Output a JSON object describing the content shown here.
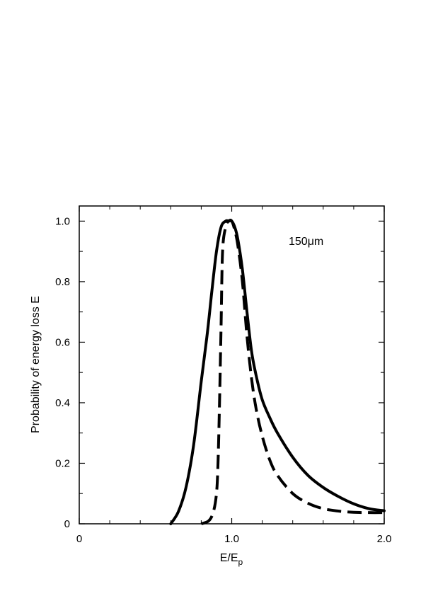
{
  "chart_data": {
    "type": "line",
    "title": "",
    "xlabel": "E/E",
    "xlabel_subscript": "p",
    "ylabel": "Probability of energy loss E",
    "xlim": [
      0,
      2.0
    ],
    "ylim": [
      0,
      1.05
    ],
    "x_tick_labels": [
      {
        "value": 0,
        "label": "0"
      },
      {
        "value": 1.0,
        "label": "1.0"
      },
      {
        "value": 2.0,
        "label": "2.0"
      }
    ],
    "y_tick_labels": [
      {
        "value": 0,
        "label": "0"
      },
      {
        "value": 0.2,
        "label": "0.2"
      },
      {
        "value": 0.4,
        "label": "0.4"
      },
      {
        "value": 0.6,
        "label": "0.6"
      },
      {
        "value": 0.8,
        "label": "0.8"
      },
      {
        "value": 1.0,
        "label": "1.0"
      }
    ],
    "minor_x_ticks": [
      0.2,
      0.4,
      0.6,
      0.8,
      1.2,
      1.4,
      1.6,
      1.8
    ],
    "minor_y_ticks": [
      0.1,
      0.3,
      0.5,
      0.7,
      0.9
    ],
    "annotation": "150μm",
    "grid": false,
    "series": [
      {
        "style": "solid",
        "color": "#000000",
        "x": [
          0.6,
          0.65,
          0.7,
          0.75,
          0.8,
          0.84,
          0.87,
          0.9,
          0.93,
          0.96,
          0.98,
          1.0,
          1.02,
          1.04,
          1.07,
          1.1,
          1.13,
          1.16,
          1.2,
          1.25,
          1.3,
          1.4,
          1.5,
          1.6,
          1.7,
          1.8,
          1.9,
          2.0
        ],
        "y": [
          0.0,
          0.04,
          0.12,
          0.26,
          0.47,
          0.63,
          0.77,
          0.9,
          0.98,
          1.0,
          1.0,
          1.0,
          0.98,
          0.94,
          0.84,
          0.7,
          0.57,
          0.49,
          0.41,
          0.35,
          0.3,
          0.22,
          0.16,
          0.12,
          0.09,
          0.066,
          0.05,
          0.043
        ]
      },
      {
        "style": "dashed",
        "color": "#000000",
        "x": [
          0.8,
          0.85,
          0.88,
          0.9,
          0.91,
          0.92,
          0.93,
          0.94,
          0.96,
          0.98,
          1.0,
          1.02,
          1.04,
          1.07,
          1.1,
          1.13,
          1.16,
          1.2,
          1.25,
          1.3,
          1.4,
          1.5,
          1.6,
          1.7,
          1.8,
          1.9,
          2.0
        ],
        "y": [
          0.0,
          0.01,
          0.04,
          0.1,
          0.2,
          0.4,
          0.65,
          0.9,
          0.98,
          1.0,
          1.0,
          0.97,
          0.92,
          0.8,
          0.62,
          0.48,
          0.38,
          0.29,
          0.21,
          0.16,
          0.1,
          0.068,
          0.05,
          0.042,
          0.038,
          0.037,
          0.037
        ]
      }
    ]
  }
}
